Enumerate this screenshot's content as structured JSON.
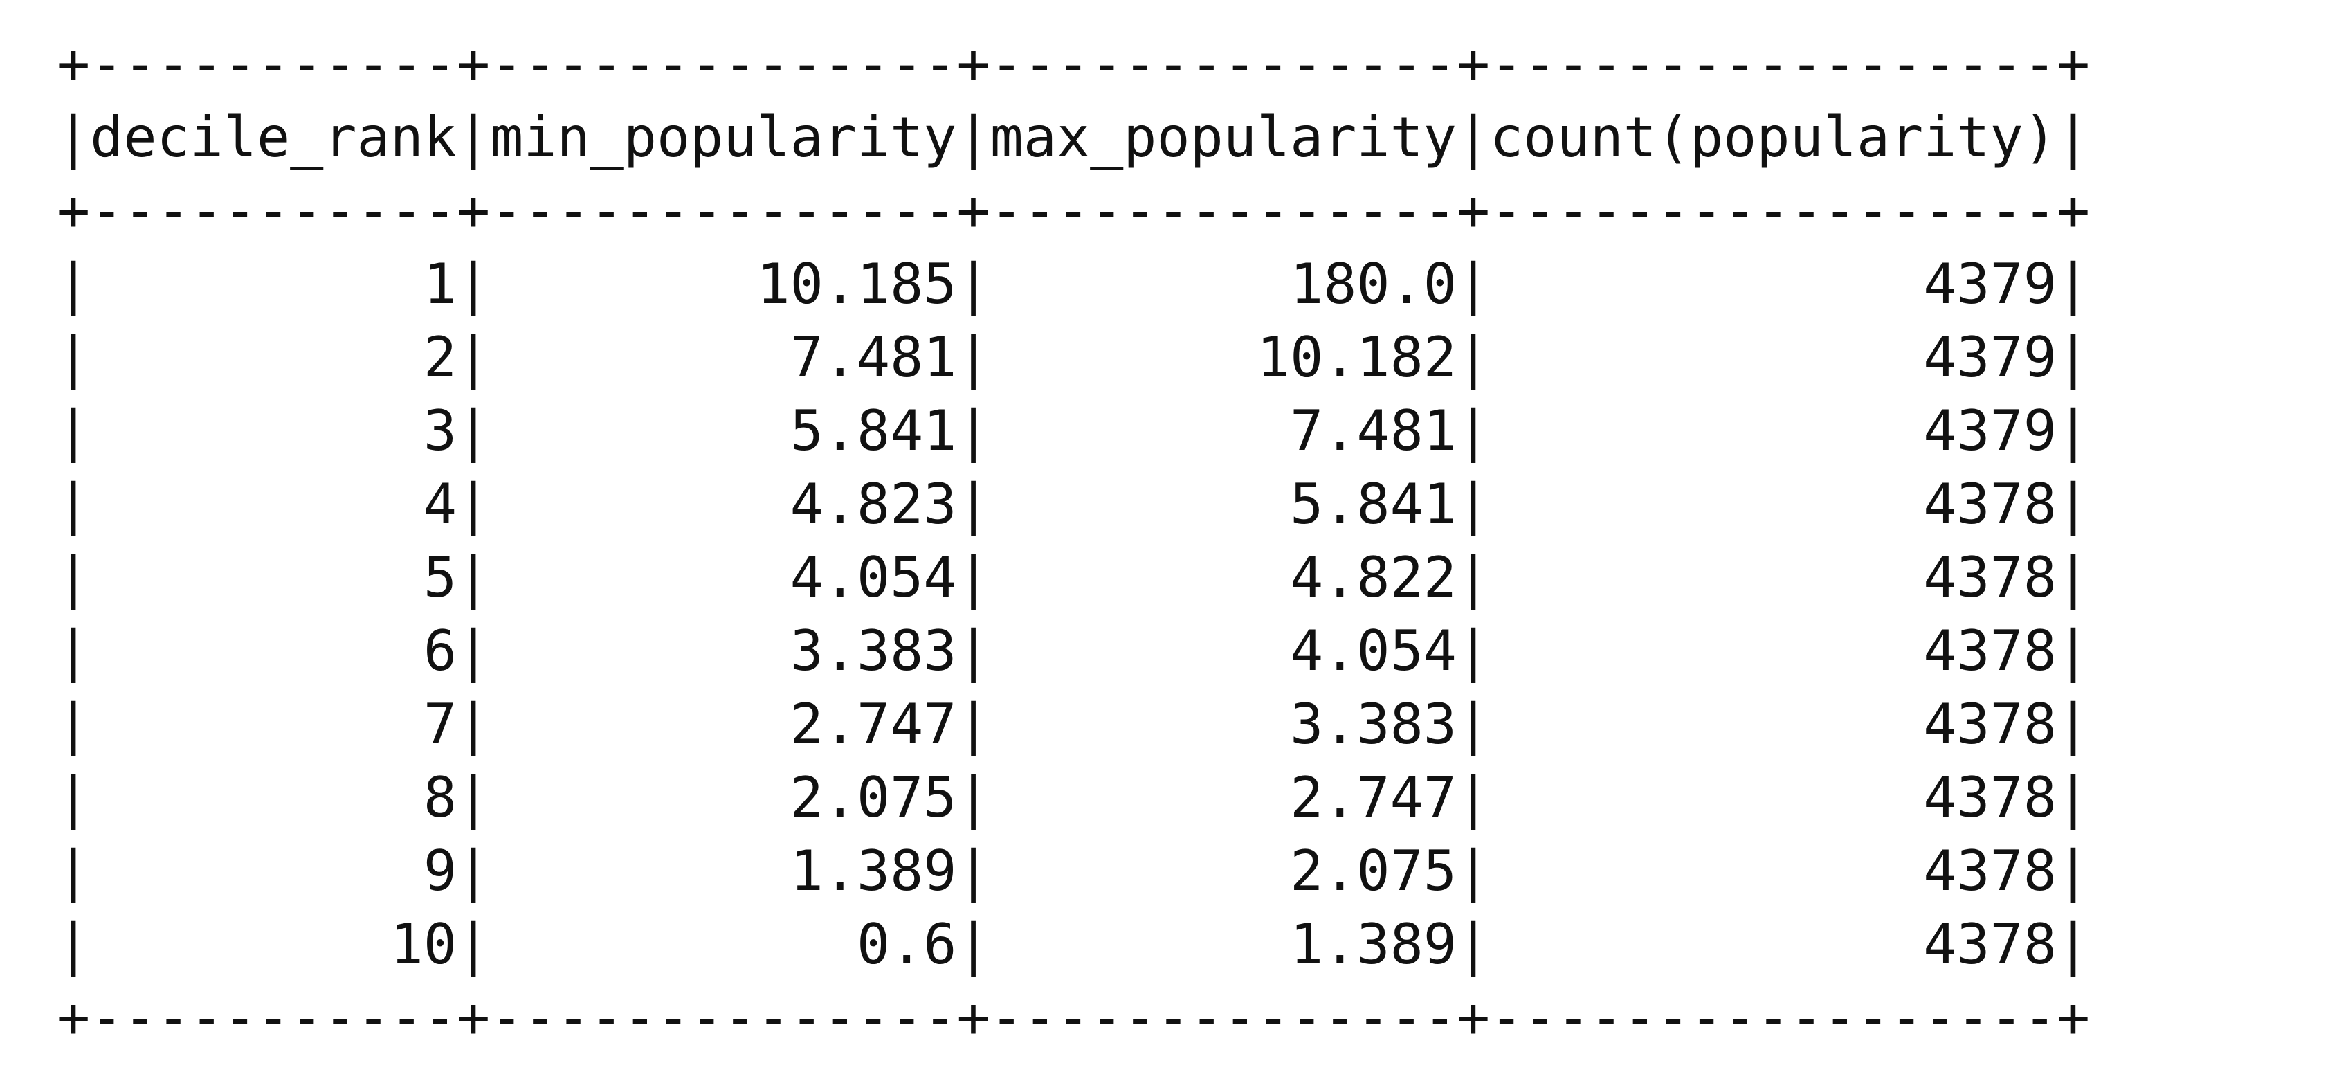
{
  "table": {
    "columns": [
      "decile_rank",
      "min_popularity",
      "max_popularity",
      "count(popularity)"
    ],
    "rows": [
      [
        "1",
        "10.185",
        "180.0",
        "4379"
      ],
      [
        "2",
        "7.481",
        "10.182",
        "4379"
      ],
      [
        "3",
        "5.841",
        "7.481",
        "4379"
      ],
      [
        "4",
        "4.823",
        "5.841",
        "4378"
      ],
      [
        "5",
        "4.054",
        "4.822",
        "4378"
      ],
      [
        "6",
        "3.383",
        "4.054",
        "4378"
      ],
      [
        "7",
        "2.747",
        "3.383",
        "4378"
      ],
      [
        "8",
        "2.075",
        "2.747",
        "4378"
      ],
      [
        "9",
        "1.389",
        "2.075",
        "4378"
      ],
      [
        "10",
        "0.6",
        "1.389",
        "4378"
      ]
    ]
  },
  "chart_data": {
    "type": "table",
    "columns": [
      "decile_rank",
      "min_popularity",
      "max_popularity",
      "count(popularity)"
    ],
    "rows": [
      [
        1,
        10.185,
        180.0,
        4379
      ],
      [
        2,
        7.481,
        10.182,
        4379
      ],
      [
        3,
        5.841,
        7.481,
        4379
      ],
      [
        4,
        4.823,
        5.841,
        4378
      ],
      [
        5,
        4.054,
        4.822,
        4378
      ],
      [
        6,
        3.383,
        4.054,
        4378
      ],
      [
        7,
        2.747,
        3.383,
        4378
      ],
      [
        8,
        2.075,
        2.747,
        4378
      ],
      [
        9,
        1.389,
        2.075,
        4378
      ],
      [
        10,
        0.6,
        1.389,
        4378
      ]
    ]
  }
}
